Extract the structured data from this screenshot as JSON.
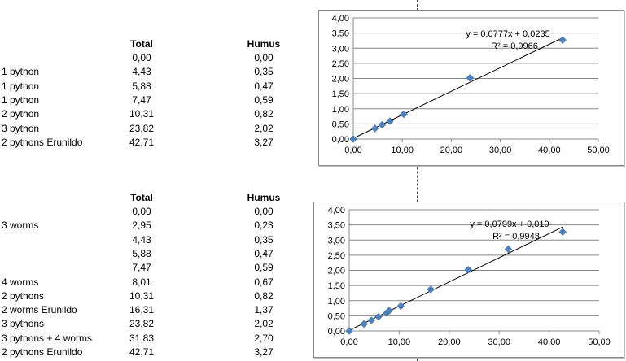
{
  "table1": {
    "headers": {
      "total": "Total",
      "humus": "Humus"
    },
    "rows": [
      {
        "label": "",
        "total": "0,00",
        "humus": "0,00"
      },
      {
        "label": "1 python",
        "total": "4,43",
        "humus": "0,35"
      },
      {
        "label": "1 python",
        "total": "5,88",
        "humus": "0,47"
      },
      {
        "label": "1 python",
        "total": "7,47",
        "humus": "0,59"
      },
      {
        "label": "2 python",
        "total": "10,31",
        "humus": "0,82"
      },
      {
        "label": "3 python",
        "total": "23,82",
        "humus": "2,02"
      },
      {
        "label": "2 pythons Erunildo",
        "total": "42,71",
        "humus": "3,27"
      }
    ]
  },
  "table2": {
    "headers": {
      "total": "Total",
      "humus": "Humus"
    },
    "rows": [
      {
        "label": "",
        "total": "0,00",
        "humus": "0,00"
      },
      {
        "label": "3 worms",
        "total": "2,95",
        "humus": "0,23"
      },
      {
        "label": "",
        "total": "4,43",
        "humus": "0,35"
      },
      {
        "label": "",
        "total": "5,88",
        "humus": "0,47"
      },
      {
        "label": "",
        "total": "7,47",
        "humus": "0,59"
      },
      {
        "label": "4 worms",
        "total": "8,01",
        "humus": "0,67"
      },
      {
        "label": "2 pythons",
        "total": "10,31",
        "humus": "0,82"
      },
      {
        "label": "2 worms Erunildo",
        "total": "16,31",
        "humus": "1,37"
      },
      {
        "label": "3 pythons",
        "total": "23,82",
        "humus": "2,02"
      },
      {
        "label": "3 pythons + 4 worms",
        "total": "31,83",
        "humus": "2,70"
      },
      {
        "label": "2 pythons Erunildo",
        "total": "42,71",
        "humus": "3,27"
      }
    ]
  },
  "colors": {
    "marker": "#4f81bd",
    "trendline": "#000000",
    "gridline": "#888888"
  },
  "chart_data": [
    {
      "type": "scatter",
      "title": "",
      "xlabel": "",
      "ylabel": "",
      "xlim": [
        0,
        50
      ],
      "ylim": [
        0,
        4
      ],
      "xticks": [
        "0,00",
        "10,00",
        "20,00",
        "30,00",
        "40,00",
        "50,00"
      ],
      "yticks": [
        "0,00",
        "0,50",
        "1,00",
        "1,50",
        "2,00",
        "2,50",
        "3,00",
        "3,50",
        "4,00"
      ],
      "grid": "horizontal",
      "x": [
        0.0,
        4.43,
        5.88,
        7.47,
        10.31,
        23.82,
        42.71
      ],
      "y": [
        0.0,
        0.35,
        0.47,
        0.59,
        0.82,
        2.02,
        3.27
      ],
      "trendline": {
        "slope": 0.0777,
        "intercept": 0.0235
      },
      "equation": "y = 0,0777x + 0,0235",
      "r2": "R² = 0,9966"
    },
    {
      "type": "scatter",
      "title": "",
      "xlabel": "",
      "ylabel": "",
      "xlim": [
        0,
        50
      ],
      "ylim": [
        0,
        4
      ],
      "xticks": [
        "0,00",
        "10,00",
        "20,00",
        "30,00",
        "40,00",
        "50,00"
      ],
      "yticks": [
        "0,00",
        "0,50",
        "1,00",
        "1,50",
        "2,00",
        "2,50",
        "3,00",
        "3,50",
        "4,00"
      ],
      "grid": "horizontal",
      "x": [
        0.0,
        2.95,
        4.43,
        5.88,
        7.47,
        8.01,
        10.31,
        16.31,
        23.82,
        31.83,
        42.71
      ],
      "y": [
        0.0,
        0.23,
        0.35,
        0.47,
        0.59,
        0.67,
        0.82,
        1.37,
        2.02,
        2.7,
        3.27
      ],
      "trendline": {
        "slope": 0.0799,
        "intercept": 0.019
      },
      "equation": "y = 0,0799x + 0,019",
      "r2": "R² = 0,9948"
    }
  ]
}
